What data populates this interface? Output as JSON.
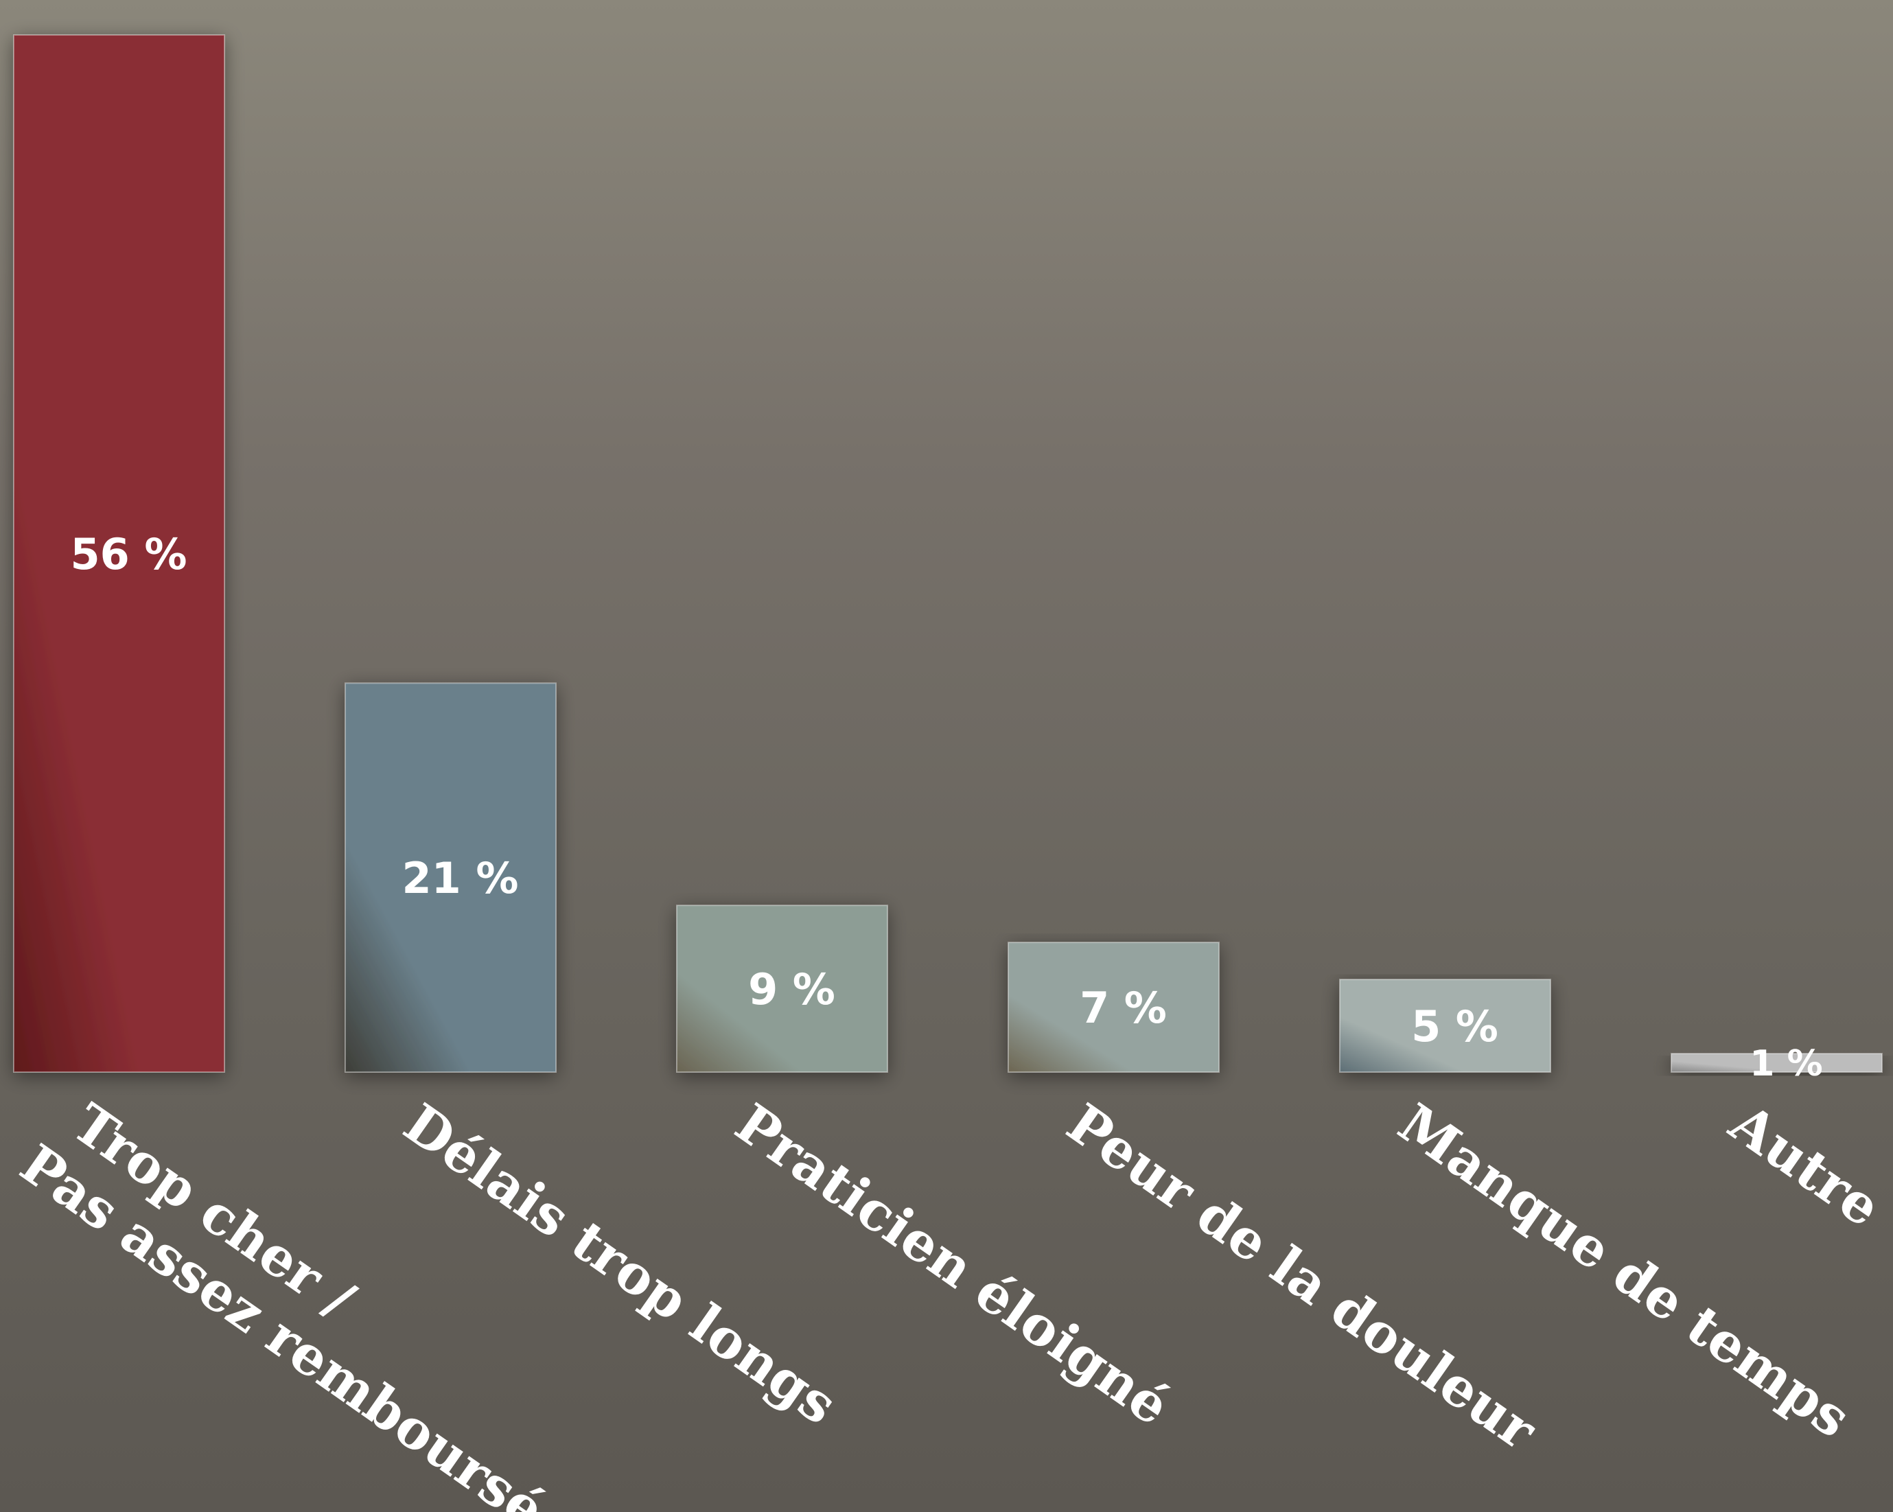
{
  "chart_data": {
    "type": "bar",
    "categories": [
      [
        "Trop cher /",
        "Pas assez remboursé"
      ],
      [
        "Délais trop longs"
      ],
      [
        "Praticien éloigné"
      ],
      [
        "Peur de la douleur"
      ],
      [
        "Manque de temps"
      ],
      [
        "Autre"
      ]
    ],
    "values": [
      56,
      21,
      9,
      7,
      5,
      1
    ],
    "value_labels": [
      "56 %",
      "21 %",
      "9 %",
      "7 %",
      "5 %",
      "1 %"
    ],
    "unit": "%",
    "title": "",
    "xlabel": "",
    "ylabel": "",
    "ylim": [
      0,
      56
    ],
    "grid": false,
    "legend": "none",
    "colors": [
      [
        "#8a2e34",
        "#5f1a1c"
      ],
      [
        "#6a808b",
        "#3e3e38"
      ],
      [
        "#8d9d95",
        "#6a6452"
      ],
      [
        "#95a39f",
        "#6d6652"
      ],
      [
        "#a5b0ad",
        "#5d6e75"
      ],
      [
        "#bcbcbc",
        "#888888"
      ]
    ]
  }
}
